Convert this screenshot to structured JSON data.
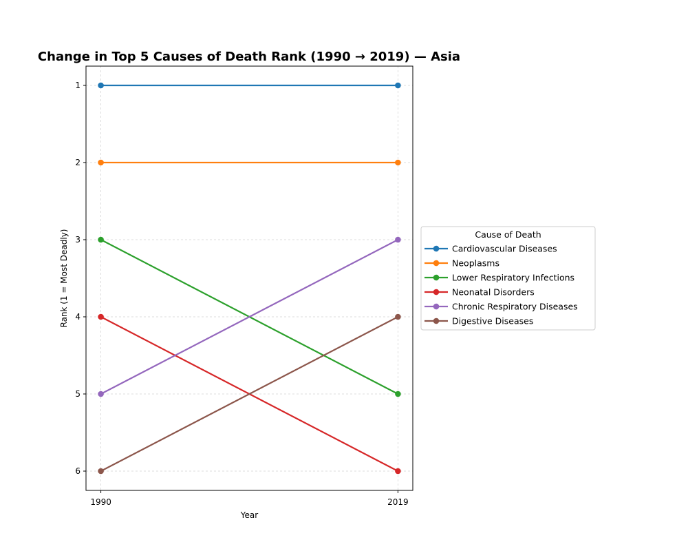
{
  "chart_data": {
    "type": "line",
    "title": "Change in Top 5 Causes of Death Rank (1990 → 2019) — Asia",
    "xlabel": "Year",
    "ylabel": "Rank (1 = Most Deadly)",
    "x": [
      1990,
      2019
    ],
    "x_tick_labels": [
      "1990",
      "2019"
    ],
    "y_ticks": [
      1,
      2,
      3,
      4,
      5,
      6
    ],
    "y_tick_labels": [
      "1",
      "2",
      "3",
      "4",
      "5",
      "6"
    ],
    "y_inverted": true,
    "ylim": [
      6.25,
      0.75
    ],
    "grid": true,
    "legend_title": "Cause of Death",
    "legend_placement": "outside-right",
    "series": [
      {
        "name": "Cardiovascular Diseases",
        "color": "#1f77b4",
        "values": [
          1,
          1
        ]
      },
      {
        "name": "Neoplasms",
        "color": "#ff7f0e",
        "values": [
          2,
          2
        ]
      },
      {
        "name": "Lower Respiratory Infections",
        "color": "#2ca02c",
        "values": [
          3,
          5
        ]
      },
      {
        "name": "Neonatal Disorders",
        "color": "#d62728",
        "values": [
          4,
          6
        ]
      },
      {
        "name": "Chronic Respiratory Diseases",
        "color": "#9467bd",
        "values": [
          5,
          3
        ]
      },
      {
        "name": "Digestive Diseases",
        "color": "#8c564b",
        "values": [
          6,
          4
        ]
      }
    ]
  }
}
